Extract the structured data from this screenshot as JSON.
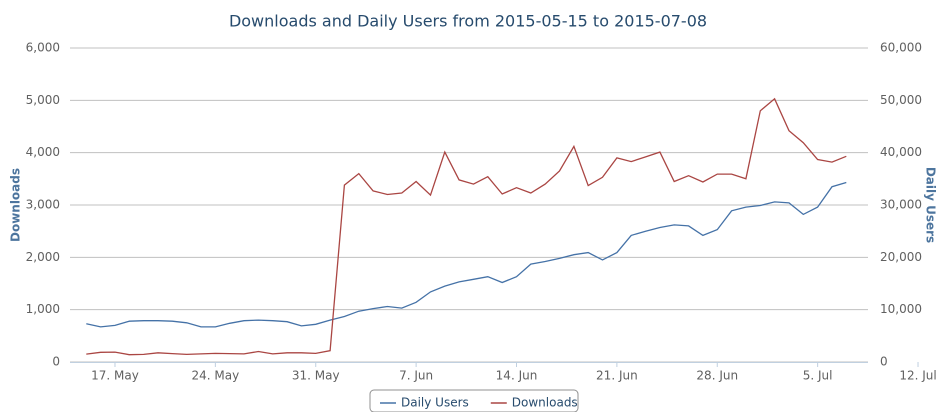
{
  "chart_data": {
    "type": "line",
    "title": "Downloads and Daily Users from 2015-05-15 to 2015-07-08",
    "y_label": "Downloads",
    "y2_label": "Daily Users",
    "categories": [
      null,
      null,
      "17. May",
      null,
      null,
      null,
      null,
      null,
      null,
      "24. May",
      null,
      null,
      null,
      null,
      null,
      null,
      "31. May",
      null,
      null,
      null,
      null,
      null,
      null,
      "7. Jun",
      null,
      null,
      null,
      null,
      null,
      null,
      "14. Jun",
      null,
      null,
      null,
      null,
      null,
      null,
      "21. Jun",
      null,
      null,
      null,
      null,
      null,
      null,
      "28. Jun",
      null,
      null,
      null,
      null,
      null,
      null,
      "5. Jul",
      null,
      null,
      null,
      null,
      null,
      null,
      "12. Jul"
    ],
    "series": [
      {
        "name": "Daily Users",
        "color": "#4572a7",
        "axis": "y2",
        "values": [
          7300,
          6700,
          7000,
          7800,
          7900,
          7900,
          7800,
          7500,
          6700,
          6700,
          7400,
          7900,
          8000,
          7900,
          7700,
          6900,
          7200,
          8000,
          8700,
          9700,
          10200,
          10600,
          10300,
          11400,
          13400,
          14500,
          15300,
          15800,
          16300,
          15200,
          16300,
          18700,
          19200,
          19800,
          20500,
          20900,
          19500,
          20900,
          24200,
          25000,
          25700,
          26200,
          26000,
          24200,
          25300,
          28900,
          29600,
          29900,
          30600,
          30400,
          28200,
          29600,
          33500,
          34300,
          null,
          null,
          null,
          null,
          null
        ]
      },
      {
        "name": "Downloads",
        "color": "#aa4643",
        "values": [
          150,
          185,
          190,
          140,
          145,
          175,
          160,
          145,
          155,
          165,
          160,
          155,
          200,
          155,
          175,
          175,
          165,
          215,
          3380,
          3600,
          3270,
          3200,
          3230,
          3450,
          3190,
          4010,
          3480,
          3400,
          3540,
          3210,
          3330,
          3230,
          3400,
          3650,
          4120,
          3370,
          3530,
          3900,
          3830,
          3920,
          4010,
          3450,
          3560,
          3440,
          3590,
          3590,
          3500,
          4800,
          5030,
          4420,
          4190,
          3870,
          3820,
          3930,
          null,
          null,
          null,
          null,
          null
        ]
      }
    ],
    "ylim": [
      0,
      6000
    ],
    "yticks": [
      0,
      {
        "value": 1000,
        "label": "1,000"
      },
      {
        "value": 2000,
        "label": "2,000"
      },
      {
        "value": 3000,
        "label": "3,000"
      },
      {
        "value": 4000,
        "label": "4,000"
      },
      {
        "value": 5000,
        "label": "5,000"
      },
      {
        "value": 6000,
        "label": "6,000"
      }
    ],
    "y2lim": [
      0,
      60000
    ],
    "y2ticks": [
      0,
      {
        "value": 10000,
        "label": "10,000"
      },
      {
        "value": 20000,
        "label": "20,000"
      },
      {
        "value": 30000,
        "label": "30,000"
      },
      {
        "value": 40000,
        "label": "40,000"
      },
      {
        "value": 50000,
        "label": "50,000"
      },
      {
        "value": 60000,
        "label": "60,000"
      }
    ],
    "grid": true,
    "legend": "bottom"
  }
}
